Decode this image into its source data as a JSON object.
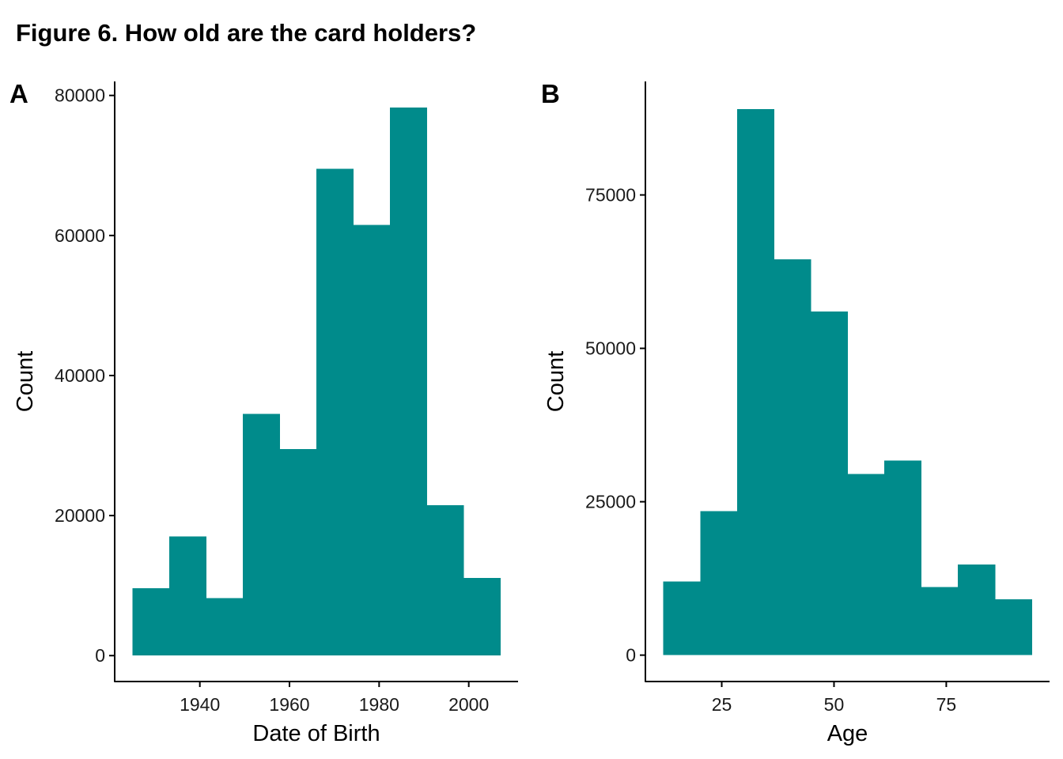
{
  "figure": {
    "title": "Figure 6. How old are the card holders?"
  },
  "style": {
    "bar_color": "#008b8b",
    "axis_color": "#000000",
    "background": "#ffffff"
  },
  "chart_data": [
    {
      "panel": "A",
      "type": "bar",
      "title": "",
      "xlabel": "Date of Birth",
      "ylabel": "Count",
      "bin_width": 8.2,
      "bins": [
        {
          "start": 1925.0,
          "end": 1933.2,
          "count": 9600
        },
        {
          "start": 1933.2,
          "end": 1941.4,
          "count": 17000
        },
        {
          "start": 1941.4,
          "end": 1949.6,
          "count": 8200
        },
        {
          "start": 1949.6,
          "end": 1957.8,
          "count": 34500
        },
        {
          "start": 1957.8,
          "end": 1966.0,
          "count": 29500
        },
        {
          "start": 1966.0,
          "end": 1974.2,
          "count": 69500
        },
        {
          "start": 1974.2,
          "end": 1982.4,
          "count": 61500
        },
        {
          "start": 1982.4,
          "end": 1990.6,
          "count": 78300
        },
        {
          "start": 1990.6,
          "end": 1998.8,
          "count": 21500
        },
        {
          "start": 1998.8,
          "end": 2007.0,
          "count": 11100
        }
      ],
      "xlim": [
        1921,
        2011
      ],
      "ylim": [
        -3700,
        82000
      ],
      "xticks": [
        1940,
        1960,
        1980,
        2000
      ],
      "yticks": [
        0,
        20000,
        40000,
        60000,
        80000
      ],
      "grid": false,
      "legend": "none"
    },
    {
      "panel": "B",
      "type": "bar",
      "title": "",
      "xlabel": "Age",
      "ylabel": "Count",
      "bin_width": 8.2,
      "bins": [
        {
          "start": 12.0,
          "end": 20.2,
          "count": 12000
        },
        {
          "start": 20.2,
          "end": 28.4,
          "count": 23500
        },
        {
          "start": 28.4,
          "end": 36.6,
          "count": 89000
        },
        {
          "start": 36.6,
          "end": 44.8,
          "count": 64500
        },
        {
          "start": 44.8,
          "end": 53.0,
          "count": 56000
        },
        {
          "start": 53.0,
          "end": 61.2,
          "count": 29500
        },
        {
          "start": 61.2,
          "end": 69.4,
          "count": 31700
        },
        {
          "start": 69.4,
          "end": 77.6,
          "count": 11100
        },
        {
          "start": 77.6,
          "end": 85.8,
          "count": 14800
        },
        {
          "start": 85.8,
          "end": 94.0,
          "count": 9100
        }
      ],
      "xlim": [
        8,
        98
      ],
      "ylim": [
        -4300,
        93500
      ],
      "xticks": [
        25,
        50,
        75
      ],
      "yticks": [
        0,
        25000,
        50000,
        75000
      ],
      "grid": false,
      "legend": "none"
    }
  ]
}
